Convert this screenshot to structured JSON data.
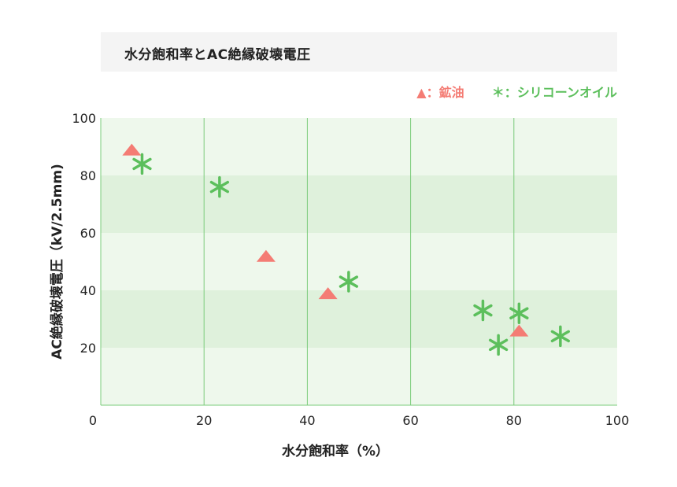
{
  "chart_data": {
    "type": "scatter",
    "title": "水分飽和率とAC絶縁破壊電圧",
    "xlabel": "水分飽和率（%）",
    "ylabel": "AC絶縁破壊電圧（kV/2.5mm)",
    "xlim": [
      0,
      100
    ],
    "ylim": [
      0,
      100
    ],
    "x_ticks": [
      0,
      20,
      40,
      60,
      80,
      100
    ],
    "y_ticks": [
      20,
      40,
      60,
      80,
      100
    ],
    "grid": true,
    "legend_position": "top-right",
    "series": [
      {
        "name": "鉱油",
        "marker": "triangle",
        "color": "#f47c74",
        "points": [
          [
            6,
            89
          ],
          [
            32,
            52
          ],
          [
            44,
            39
          ],
          [
            81,
            26
          ]
        ]
      },
      {
        "name": "シリコーンオイル",
        "marker": "asterisk",
        "color": "#5cbf5c",
        "points": [
          [
            8,
            84
          ],
          [
            23,
            76
          ],
          [
            48,
            43
          ],
          [
            74,
            33
          ],
          [
            77,
            21
          ],
          [
            81,
            32
          ],
          [
            89,
            24
          ]
        ]
      }
    ]
  },
  "legend": {
    "mineral_symbol": "▲",
    "mineral_sep": "：",
    "silicone_symbol": "＊",
    "silicone_sep": "："
  }
}
